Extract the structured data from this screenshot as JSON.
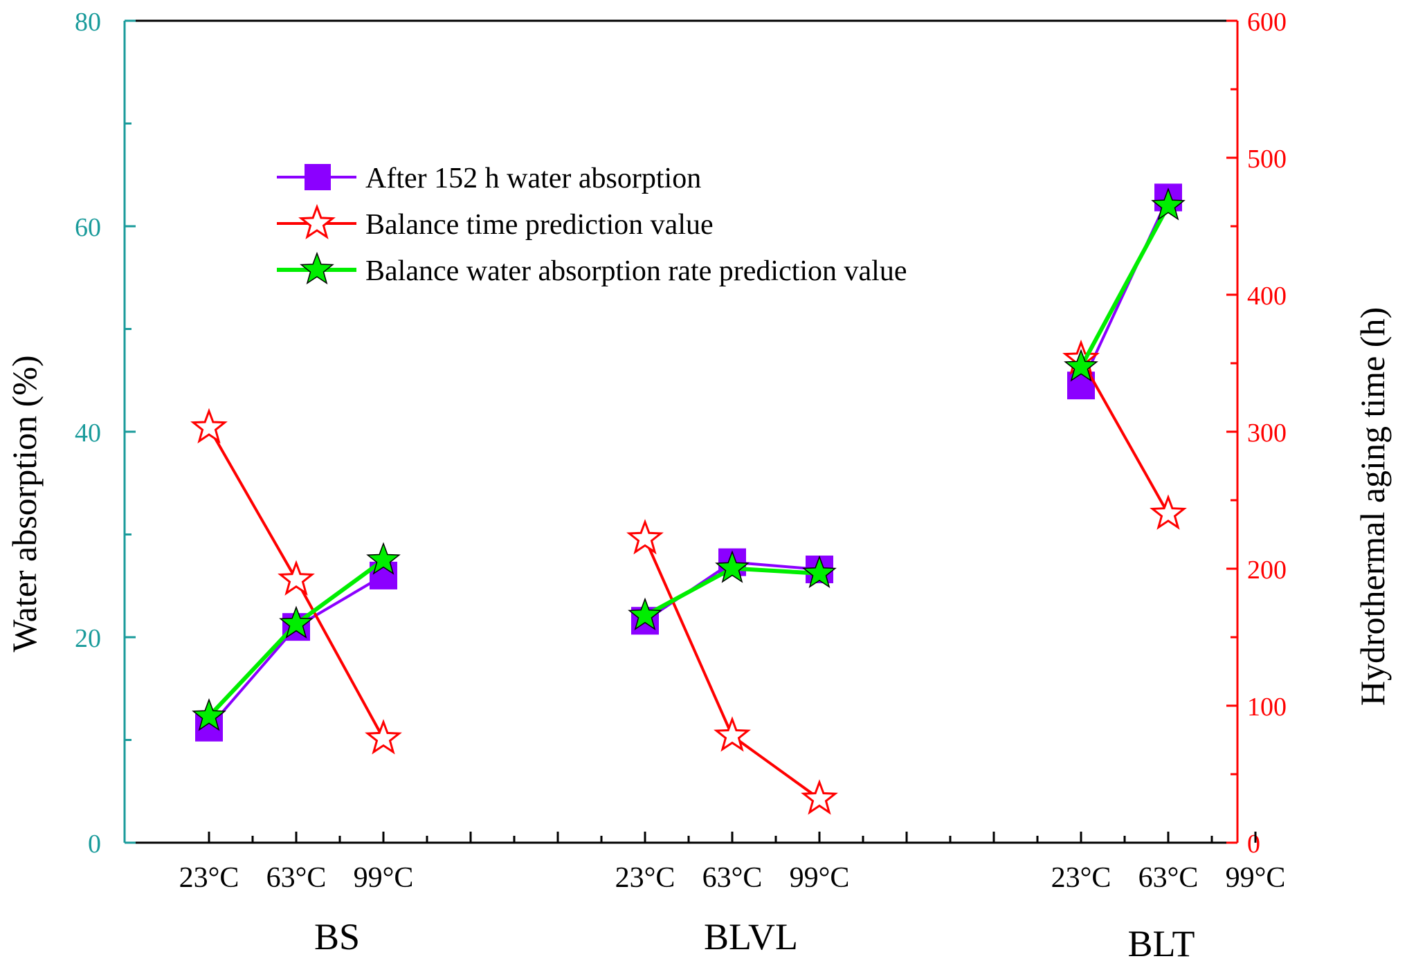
{
  "chart_data": {
    "type": "line",
    "title": "",
    "categories": [
      "23°C",
      "63°C",
      "99°C",
      "23°C",
      "63°C",
      "99°C",
      "23°C",
      "63°C",
      "99°C"
    ],
    "groups": [
      {
        "label": "BS",
        "slots": [
          0,
          1,
          2
        ]
      },
      {
        "label": "BLVL",
        "slots": [
          5,
          6,
          7
        ]
      },
      {
        "label": "BLT",
        "slots": [
          10,
          11,
          12
        ]
      }
    ],
    "left_axis": {
      "label": "Water absorption (%)",
      "range": [
        0,
        80
      ],
      "ticks": [
        0,
        20,
        40,
        60,
        80
      ],
      "tick_labels": [
        "0",
        "20",
        "40",
        "60",
        "80"
      ],
      "color": "#1a9b9b"
    },
    "right_axis": {
      "label": "Hydrothermal aging time (h)",
      "range": [
        0,
        600
      ],
      "ticks": [
        0,
        100,
        200,
        300,
        400,
        500,
        600
      ],
      "tick_labels": [
        "0",
        "100",
        "200",
        "300",
        "400",
        "500",
        "600"
      ],
      "color": "#ff0000"
    },
    "series": [
      {
        "name": "After 152 h water absorption",
        "axis": "left",
        "marker": "square",
        "color": "#8b00ff",
        "segments": [
          [
            [
              0,
              11.2
            ],
            [
              1,
              21.0
            ],
            [
              2,
              26.0
            ]
          ],
          [
            [
              5,
              21.6
            ],
            [
              6,
              27.3
            ],
            [
              7,
              26.6
            ]
          ],
          [
            [
              10,
              44.5
            ],
            [
              11,
              62.8
            ]
          ]
        ]
      },
      {
        "name": "Balance time prediction value",
        "axis": "right",
        "marker": "open-star",
        "color": "#ff0000",
        "segments": [
          [
            [
              0,
              303
            ],
            [
              1,
              192
            ],
            [
              2,
              76
            ]
          ],
          [
            [
              5,
              222
            ],
            [
              6,
              78
            ],
            [
              7,
              32
            ]
          ],
          [
            [
              10,
              353
            ],
            [
              11,
              240
            ]
          ]
        ]
      },
      {
        "name": "Balance water absorption rate prediction value",
        "axis": "left",
        "marker": "filled-star",
        "color": "#00ee00",
        "segments": [
          [
            [
              0,
              12.3
            ],
            [
              1,
              21.3
            ],
            [
              2,
              27.5
            ]
          ],
          [
            [
              5,
              22.1
            ],
            [
              6,
              26.7
            ],
            [
              7,
              26.2
            ]
          ],
          [
            [
              10,
              46.3
            ],
            [
              11,
              62.0
            ]
          ]
        ]
      }
    ],
    "legend": {
      "position": "top-center",
      "entries": [
        "After 152 h water absorption",
        "Balance time prediction value",
        "Balance water absorption rate prediction value"
      ]
    },
    "grid": false
  }
}
